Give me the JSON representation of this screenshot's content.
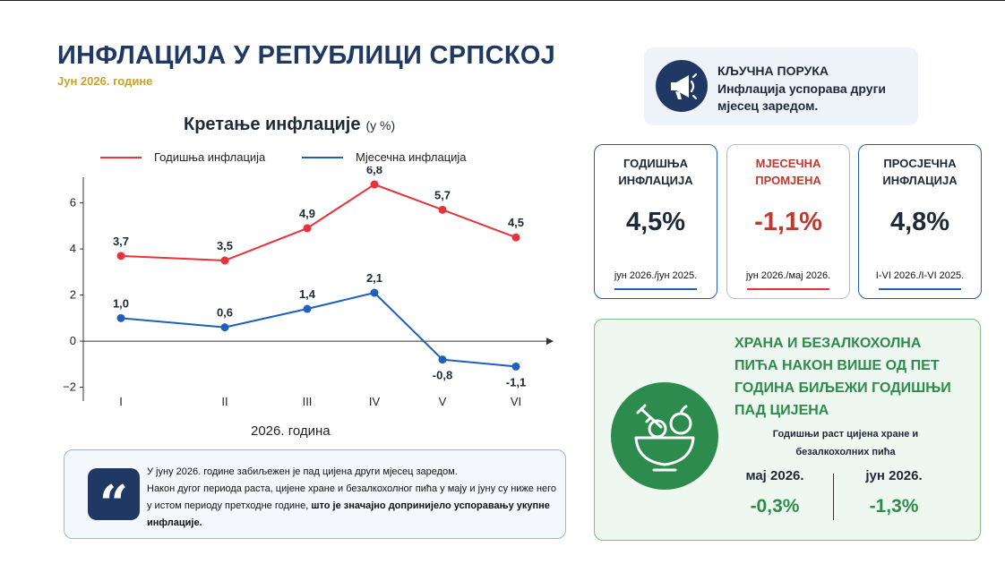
{
  "header": {
    "title": "ИНФЛАЦИЈА У РЕПУБЛИЦИ СРПСКОЈ",
    "subtitle": "Јун 2026. године"
  },
  "chart_heading": {
    "title": "Кретање инфлације",
    "unit": "(у %)",
    "xlabel": "2026. година"
  },
  "chart_data": {
    "type": "line",
    "categories": [
      "I",
      "II",
      "III",
      "IV",
      "V",
      "VI"
    ],
    "series": [
      {
        "name": "Годишња инфлација",
        "color": "#e8333a",
        "values": [
          3.7,
          3.5,
          4.9,
          6.8,
          5.7,
          4.5
        ],
        "labels": [
          "3,7",
          "3,5",
          "4,9",
          "6,8",
          "5,7",
          "4,5"
        ]
      },
      {
        "name": "Мјесечна инфлација",
        "color": "#1f5fbf",
        "values": [
          1.0,
          0.6,
          1.4,
          2.1,
          -0.8,
          -1.1
        ],
        "labels": [
          "1,0",
          "0,6",
          "1,4",
          "2,1",
          "-0,8",
          "-1,1"
        ]
      }
    ],
    "yticks": [
      "6",
      "4",
      "2",
      "0",
      "−2"
    ],
    "ytick_values": [
      6,
      4,
      2,
      0,
      -2
    ],
    "ylim": [
      -2.6,
      7.5
    ],
    "grid": false,
    "legend": "top"
  },
  "quote": {
    "line1": "У јуну 2026. године забиљежен је пад цијена други мјесец заредом.",
    "line2": "Након дугог периода раста, цијене хране и безалкохолног пића у мају и јуну су ниже него у истом периоду претходне године,",
    "bold": "што је значајно допринијело успоравању укупне инфлације."
  },
  "key_message": {
    "title": "КЉУЧНА ПОРУКА",
    "text": "Инфлација успорава други мјесец заредом."
  },
  "cards": [
    {
      "title": "ГОДИШЊА ИНФЛАЦИЈА",
      "value": "4,5%",
      "desc": "јун 2026./јун 2025.",
      "color": "#1f2937",
      "border": "#1f5fbf"
    },
    {
      "title": "МЈЕСЕЧНА ПРОМЈЕНА",
      "value": "-1,1%",
      "desc": "јун 2026./мај 2026.",
      "color": "#c0392b",
      "border": "#bdbdbd"
    },
    {
      "title": "ПРОСЈЕЧНА ИНФЛАЦИЈА",
      "value": "4,8%",
      "desc": "I-VI 2026./I-VI 2025.",
      "color": "#1f2937",
      "border": "#1f5fbf"
    }
  ],
  "food": {
    "title": "ХРАНА И БЕЗАЛКОХОЛНА ПИЋА НАКОН ВИШЕ ОД ПЕТ ГОДИНА БИЉЕЖИ ГОДИШЊИ ПАД ЦИЈЕНА",
    "subtitle": "Годишњи раст цијена хране и безалкохолних пића",
    "may_label": "мај 2026.",
    "may_value": "-0,3%",
    "jun_label": "јун 2026.",
    "jun_value": "-1,3%"
  },
  "icons": [
    "megaphone-icon",
    "quote-icon",
    "food-bowl-icon"
  ]
}
